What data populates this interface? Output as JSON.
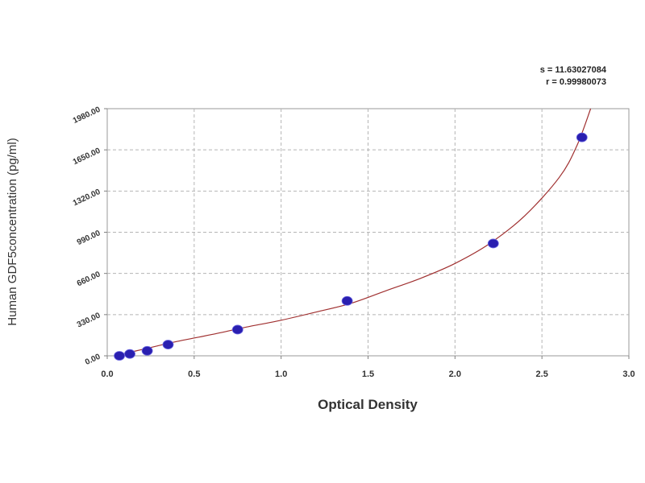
{
  "chart_data": {
    "type": "scatter",
    "xlabel": "Optical Density",
    "ylabel": "Human GDF5concentration (pg/ml)",
    "xlim": [
      0,
      3.0
    ],
    "ylim": [
      0,
      1980
    ],
    "x_ticks": [
      "0.0",
      "0.5",
      "1.0",
      "1.5",
      "2.0",
      "2.5",
      "3.0"
    ],
    "x_tick_values": [
      0,
      0.5,
      1.0,
      1.5,
      2.0,
      2.5,
      3.0
    ],
    "y_ticks": [
      "0.00",
      "330.00",
      "660.00",
      "990.00",
      "1320.00",
      "1650.00",
      "1980.00"
    ],
    "y_tick_values": [
      0,
      330,
      660,
      990,
      1320,
      1650,
      1980
    ],
    "grid": true,
    "grid_style": "dashed",
    "series": [
      {
        "x": [
          0.07,
          0.13,
          0.23,
          0.35,
          0.75,
          1.38,
          2.22,
          2.73
        ],
        "y": [
          0,
          15,
          40,
          90,
          210,
          440,
          900,
          1750
        ]
      }
    ],
    "fit_curve": {
      "x": [
        0.04,
        0.2,
        0.4,
        0.6,
        0.8,
        1.0,
        1.2,
        1.4,
        1.6,
        1.8,
        2.0,
        2.2,
        2.4,
        2.6,
        2.7,
        2.78
      ],
      "y": [
        0,
        50,
        115,
        170,
        230,
        285,
        350,
        420,
        520,
        620,
        740,
        900,
        1120,
        1430,
        1680,
        1980
      ]
    },
    "annotations": [
      "s = 11.63027084",
      "r = 0.99980073"
    ],
    "colors": {
      "point": "#2a1fb0",
      "curve": "#a03030",
      "grid": "#b5b5b5",
      "axis": "#808080"
    }
  }
}
